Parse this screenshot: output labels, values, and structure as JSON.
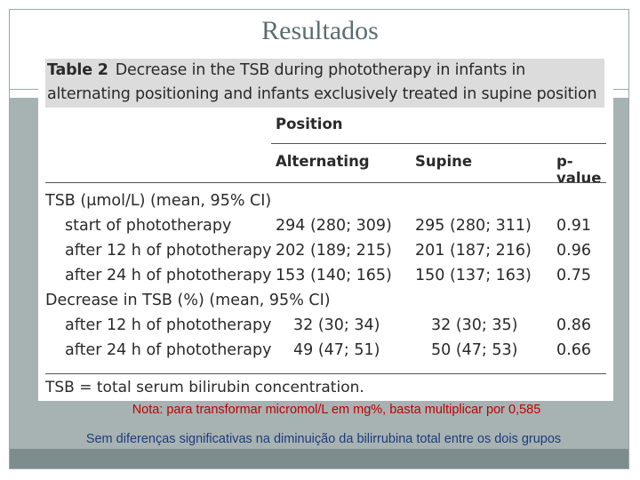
{
  "slide": {
    "title": "Resultados"
  },
  "table": {
    "label": "Table 2",
    "caption": "Decrease in the TSB during phototherapy in infants in alternating positioning and infants exclusively treated in supine position",
    "group_header": "Position",
    "columns": [
      "Alternating",
      "Supine",
      "p-value"
    ],
    "rows": [
      {
        "label": "TSB (μmol/L) (mean, 95% CI)",
        "indent": false,
        "alternating": "",
        "supine": "",
        "p": ""
      },
      {
        "label": "start of phototherapy",
        "indent": true,
        "alternating": "294 (280; 309)",
        "supine": "295 (280; 311)",
        "p": "0.91"
      },
      {
        "label": "after 12 h of phototherapy",
        "indent": true,
        "alternating": "202 (189; 215)",
        "supine": "201 (187; 216)",
        "p": "0.96"
      },
      {
        "label": "after 24 h of phototherapy",
        "indent": true,
        "alternating": "153 (140; 165)",
        "supine": "150 (137; 163)",
        "p": "0.75"
      },
      {
        "label": "Decrease in TSB (%) (mean, 95% CI)",
        "indent": false,
        "alternating": "",
        "supine": "",
        "p": ""
      },
      {
        "label": "after 12 h of phototherapy",
        "indent": true,
        "alternating": "32 (30; 34)",
        "supine": "32 (30; 35)",
        "p": "0.86"
      },
      {
        "label": "after 24 h of phototherapy",
        "indent": true,
        "alternating": "49 (47; 51)",
        "supine": "50 (47; 53)",
        "p": "0.66"
      }
    ],
    "footnote": "TSB = total serum bilirubin concentration."
  },
  "notes": {
    "nota": "Nota: para transformar micromol/L em mg%, basta multiplicar por 0,585",
    "conclusion": "Sem diferenças significativas na diminuição da bilirrubina total entre os dois grupos"
  },
  "colors": {
    "nota": "#c00000",
    "conclusion": "#1f3a7a",
    "band": "#a7b3b3"
  }
}
